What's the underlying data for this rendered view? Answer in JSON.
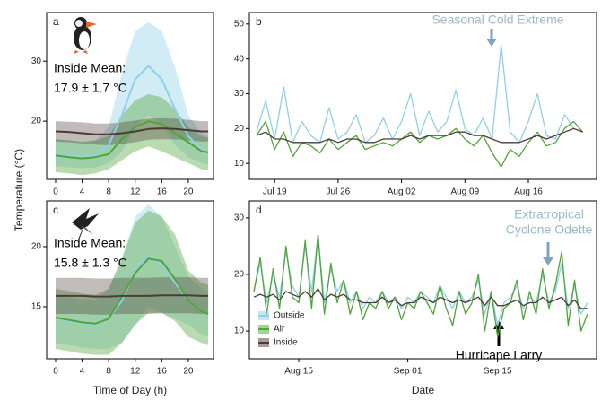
{
  "chart_data": [
    {
      "type": "line",
      "label": "a",
      "annotation": [
        "Inside Mean:",
        "17.9 ± 1.7 °C"
      ],
      "ylabel": "Temperature (°C)",
      "x": [
        0,
        2,
        4,
        6,
        8,
        10,
        12,
        14,
        16,
        18,
        20,
        22,
        23
      ],
      "xlim": [
        -1.35,
        23.8
      ],
      "xticks": [
        0,
        4,
        8,
        12,
        16,
        20
      ],
      "ylim": [
        10.3,
        38.1
      ],
      "yticks": [
        20,
        30
      ],
      "series": [
        {
          "color": "#8fd0e8",
          "values": [
            14.5,
            14.3,
            14.2,
            14.3,
            16,
            21,
            27,
            29.2,
            27,
            22,
            17.5,
            15.2,
            14.8
          ],
          "upper": [
            17,
            16.8,
            16.6,
            16.8,
            19,
            28,
            35,
            36.5,
            35,
            29,
            21,
            18,
            17.5
          ],
          "lower": [
            12.5,
            12.3,
            12.2,
            12.3,
            13,
            15,
            19,
            21,
            19.5,
            16,
            14,
            13,
            12.8
          ]
        },
        {
          "color": "#4fa536",
          "values": [
            14.3,
            14,
            13.8,
            14,
            14.5,
            17,
            19,
            20,
            19.5,
            18,
            16.5,
            15,
            14.8
          ],
          "upper": [
            17,
            16.8,
            16.5,
            16.8,
            17.5,
            21,
            23.5,
            24.5,
            24,
            22,
            19,
            17.5,
            17.2
          ],
          "lower": [
            11.5,
            11.3,
            11,
            11.3,
            12,
            13.5,
            15,
            15.8,
            15,
            14,
            13,
            12,
            11.8
          ]
        },
        {
          "color": "#4d3b38",
          "values": [
            18.3,
            18.2,
            18,
            17.8,
            17.8,
            18,
            18.3,
            18.7,
            18.8,
            18.7,
            18.5,
            18.3,
            18.3
          ],
          "upper": [
            20,
            19.9,
            19.8,
            19.6,
            19.6,
            19.8,
            20.1,
            20.4,
            20.5,
            20.4,
            20.2,
            20,
            20
          ],
          "lower": [
            16.6,
            16.5,
            16.3,
            16.1,
            16,
            16.2,
            16.5,
            16.9,
            17,
            17,
            16.8,
            16.6,
            16.6
          ]
        }
      ]
    },
    {
      "type": "line",
      "label": "b",
      "annotation": [
        "Seasonal Cold Extreme"
      ],
      "categories": [
        "Jul 17",
        "Jul 18",
        "Jul 19",
        "Jul 20",
        "Jul 21",
        "Jul 22",
        "Jul 23",
        "Jul 24",
        "Jul 25",
        "Jul 26",
        "Jul 27",
        "Jul 28",
        "Jul 29",
        "Jul 30",
        "Jul 31",
        "Aug 01",
        "Aug 02",
        "Aug 03",
        "Aug 04",
        "Aug 05",
        "Aug 06",
        "Aug 07",
        "Aug 08",
        "Aug 09",
        "Aug 10",
        "Aug 11",
        "Aug 12",
        "Aug 13",
        "Aug 14",
        "Aug 15",
        "Aug 16",
        "Aug 17",
        "Aug 18",
        "Aug 19",
        "Aug 20",
        "Aug 21",
        "Aug 22"
      ],
      "xticks": [
        "Jul 19",
        "Jul 26",
        "Aug 02",
        "Aug 09",
        "Aug 16"
      ],
      "ylim": [
        5.4,
        53.3
      ],
      "yticks": [
        10,
        20,
        30,
        40,
        50
      ],
      "series": [
        {
          "color": "#8fd0e8",
          "values": [
            19,
            28,
            17,
            32,
            16,
            22,
            18,
            16,
            26,
            17,
            19,
            24,
            16,
            18,
            23,
            17,
            22,
            30,
            18,
            25,
            19,
            22,
            31,
            20,
            18,
            23,
            17,
            44,
            19,
            16,
            22,
            30,
            18,
            17,
            24,
            20,
            19
          ]
        },
        {
          "color": "#4fa536",
          "values": [
            18,
            22,
            14,
            19,
            12,
            16,
            15,
            13,
            17,
            14,
            16,
            18,
            14,
            15,
            16,
            15,
            17,
            19,
            16,
            18,
            17,
            18,
            20,
            17,
            15,
            18,
            13,
            9,
            14,
            12,
            16,
            19,
            15,
            16,
            20,
            22,
            19
          ]
        },
        {
          "color": "#4d3b38",
          "values": [
            18,
            19,
            17,
            17,
            16,
            16,
            16,
            16,
            17,
            16,
            17,
            17,
            16,
            16,
            17,
            17,
            17,
            18,
            17,
            18,
            18,
            18,
            19,
            19,
            18,
            18,
            17,
            16,
            16,
            16,
            17,
            18,
            17,
            18,
            19,
            20,
            19
          ]
        }
      ]
    },
    {
      "type": "line",
      "label": "c",
      "annotation": [
        "Inside Mean:",
        "15.8 ± 1.3 °C"
      ],
      "xlabel": "Time of Day (h)",
      "x": [
        0,
        2,
        4,
        6,
        8,
        10,
        12,
        14,
        16,
        18,
        20,
        22,
        23
      ],
      "xlim": [
        -1.35,
        23.8
      ],
      "xticks": [
        0,
        4,
        8,
        12,
        16,
        20
      ],
      "ylim": [
        10.67,
        23.8
      ],
      "yticks": [
        15,
        20
      ],
      "series": [
        {
          "color": "#8fd0e8",
          "values": [
            14,
            13.8,
            13.6,
            13.5,
            14,
            15.5,
            18,
            19.2,
            18.5,
            17,
            15.5,
            14.6,
            14.4
          ],
          "upper": [
            16,
            15.8,
            15.6,
            15.5,
            16.5,
            19,
            22.5,
            23.5,
            22.5,
            20,
            17.5,
            16.5,
            16.2
          ],
          "lower": [
            12,
            11.8,
            11.6,
            11.5,
            11.5,
            12,
            13.5,
            15,
            14.5,
            14,
            13.5,
            12.7,
            12.5
          ]
        },
        {
          "color": "#4fa536",
          "values": [
            14.1,
            13.9,
            13.7,
            13.6,
            14,
            15.8,
            17.8,
            19,
            18.8,
            17.3,
            15.5,
            14.6,
            14.4
          ],
          "upper": [
            16.5,
            16.3,
            16.1,
            16,
            16.5,
            19,
            22,
            23,
            22.5,
            21,
            18,
            17,
            16.8
          ],
          "lower": [
            11.5,
            11.3,
            11.1,
            11,
            11,
            12,
            13.5,
            14.5,
            14.5,
            13.8,
            12.5,
            12,
            11.8
          ]
        },
        {
          "color": "#4d3b38",
          "values": [
            15.9,
            15.9,
            15.9,
            15.85,
            15.85,
            15.9,
            15.9,
            15.9,
            15.95,
            15.95,
            15.95,
            15.9,
            15.9
          ],
          "upper": [
            17.4,
            17.4,
            17.4,
            17.35,
            17.35,
            17.4,
            17.4,
            17.4,
            17.45,
            17.45,
            17.45,
            17.4,
            17.4
          ],
          "lower": [
            14.4,
            14.4,
            14.4,
            14.35,
            14.35,
            14.4,
            14.4,
            14.4,
            14.45,
            14.45,
            14.45,
            14.4,
            14.4
          ]
        }
      ]
    },
    {
      "type": "line",
      "label": "d",
      "annotation": [
        "Extratropical",
        "Cyclone Odette",
        "Hurricane Larry"
      ],
      "xlabel": "Date",
      "legend": "lower left",
      "categories": [
        "Aug 08",
        "Aug 09",
        "Aug 10",
        "Aug 11",
        "Aug 12",
        "Aug 13",
        "Aug 14",
        "Aug 15",
        "Aug 16",
        "Aug 17",
        "Aug 18",
        "Aug 19",
        "Aug 20",
        "Aug 21",
        "Aug 22",
        "Aug 23",
        "Aug 24",
        "Aug 25",
        "Aug 26",
        "Aug 27",
        "Aug 28",
        "Aug 29",
        "Aug 30",
        "Aug 31",
        "Sep 01",
        "Sep 02",
        "Sep 03",
        "Sep 04",
        "Sep 05",
        "Sep 06",
        "Sep 07",
        "Sep 08",
        "Sep 09",
        "Sep 10",
        "Sep 11",
        "Sep 12",
        "Sep 13",
        "Sep 14",
        "Sep 15",
        "Sep 16",
        "Sep 17",
        "Sep 18",
        "Sep 19",
        "Sep 20",
        "Sep 21",
        "Sep 22",
        "Sep 23",
        "Sep 24",
        "Sep 25",
        "Sep 26",
        "Sep 27",
        "Sep 28",
        "Sep 29"
      ],
      "xticks": [
        "Aug 15",
        "Sep 01",
        "Sep 15"
      ],
      "ylim": [
        5.1,
        33
      ],
      "yticks": [
        10,
        20,
        30
      ],
      "series": [
        {
          "name": "Outside",
          "color": "#8fd0e8",
          "values": [
            17,
            22,
            15,
            20,
            16,
            24,
            18,
            16,
            25,
            17,
            27,
            15,
            21,
            17,
            19,
            15,
            17,
            14,
            16,
            15,
            17,
            15,
            16,
            14,
            16,
            15,
            17,
            16,
            15,
            18,
            16,
            14,
            17,
            15,
            16,
            19,
            13,
            17,
            11,
            15,
            16,
            18,
            14,
            16,
            15,
            20,
            15,
            17,
            22,
            14,
            18,
            13,
            15
          ]
        },
        {
          "name": "Air",
          "color": "#4fa536",
          "values": [
            17,
            23,
            13,
            21,
            14,
            25,
            16,
            15,
            26,
            14,
            27,
            13,
            22,
            15,
            19,
            13,
            17,
            12,
            15,
            14,
            17,
            14,
            16,
            12,
            15,
            14,
            17,
            15,
            13,
            18,
            14,
            11,
            17,
            13,
            15,
            20,
            10,
            17,
            9,
            14,
            15,
            19,
            12,
            17,
            13,
            21,
            14,
            18,
            24,
            11,
            19,
            10,
            13
          ]
        },
        {
          "name": "Inside",
          "color": "#4d3b38",
          "values": [
            16,
            16.5,
            16,
            16.5,
            15.5,
            17,
            16.5,
            16,
            17,
            16,
            17.5,
            15.5,
            16.5,
            16,
            16.5,
            15.5,
            15.5,
            15,
            15,
            15,
            16,
            15,
            15.5,
            14.5,
            15,
            15,
            16,
            15.5,
            15,
            16,
            15.5,
            15,
            15.5,
            15,
            15.5,
            16,
            14.5,
            16,
            14.5,
            14.5,
            15,
            15.5,
            14.5,
            15,
            15,
            16,
            15,
            15.5,
            16,
            14.5,
            15.5,
            14,
            14
          ]
        }
      ]
    }
  ]
}
